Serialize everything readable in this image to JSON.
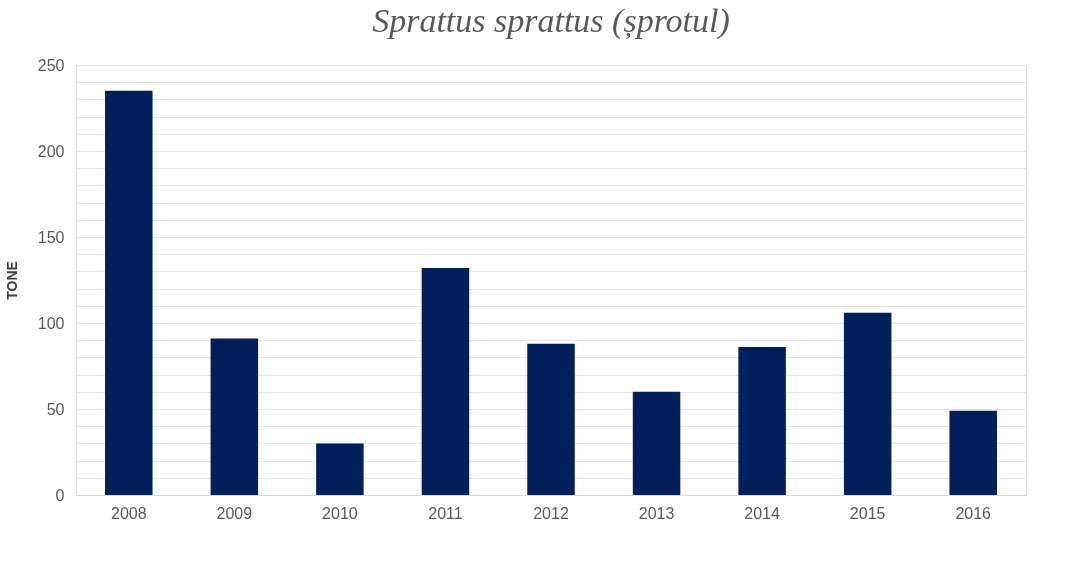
{
  "chart_data": {
    "type": "bar",
    "title": "Sprattus sprattus (șprotul)",
    "ylabel": "TONE",
    "categories": [
      "2008",
      "2009",
      "2010",
      "2011",
      "2012",
      "2013",
      "2014",
      "2015",
      "2016"
    ],
    "values": [
      235,
      91,
      30,
      132,
      88,
      60,
      86,
      106,
      49
    ],
    "color": "#001f5b",
    "ylim": [
      0,
      250
    ],
    "yticks": [
      0,
      {
        "value": 10,
        "label": null
      },
      {
        "value": 20,
        "label": null
      },
      {
        "value": 30,
        "label": null
      },
      {
        "value": 40,
        "label": null
      },
      50,
      {
        "value": 60,
        "label": null
      },
      {
        "value": 70,
        "label": null
      },
      {
        "value": 80,
        "label": null
      },
      {
        "value": 90,
        "label": null
      },
      100,
      {
        "value": 110,
        "label": null
      },
      {
        "value": 120,
        "label": null
      },
      {
        "value": 130,
        "label": null
      },
      {
        "value": 140,
        "label": null
      },
      150,
      {
        "value": 160,
        "label": null
      },
      {
        "value": 170,
        "label": null
      },
      {
        "value": 180,
        "label": null
      },
      {
        "value": 190,
        "label": null
      },
      200,
      {
        "value": 210,
        "label": null
      },
      {
        "value": 220,
        "label": null
      },
      {
        "value": 230,
        "label": null
      },
      {
        "value": 240,
        "label": null
      },
      250
    ],
    "grid": "y"
  }
}
